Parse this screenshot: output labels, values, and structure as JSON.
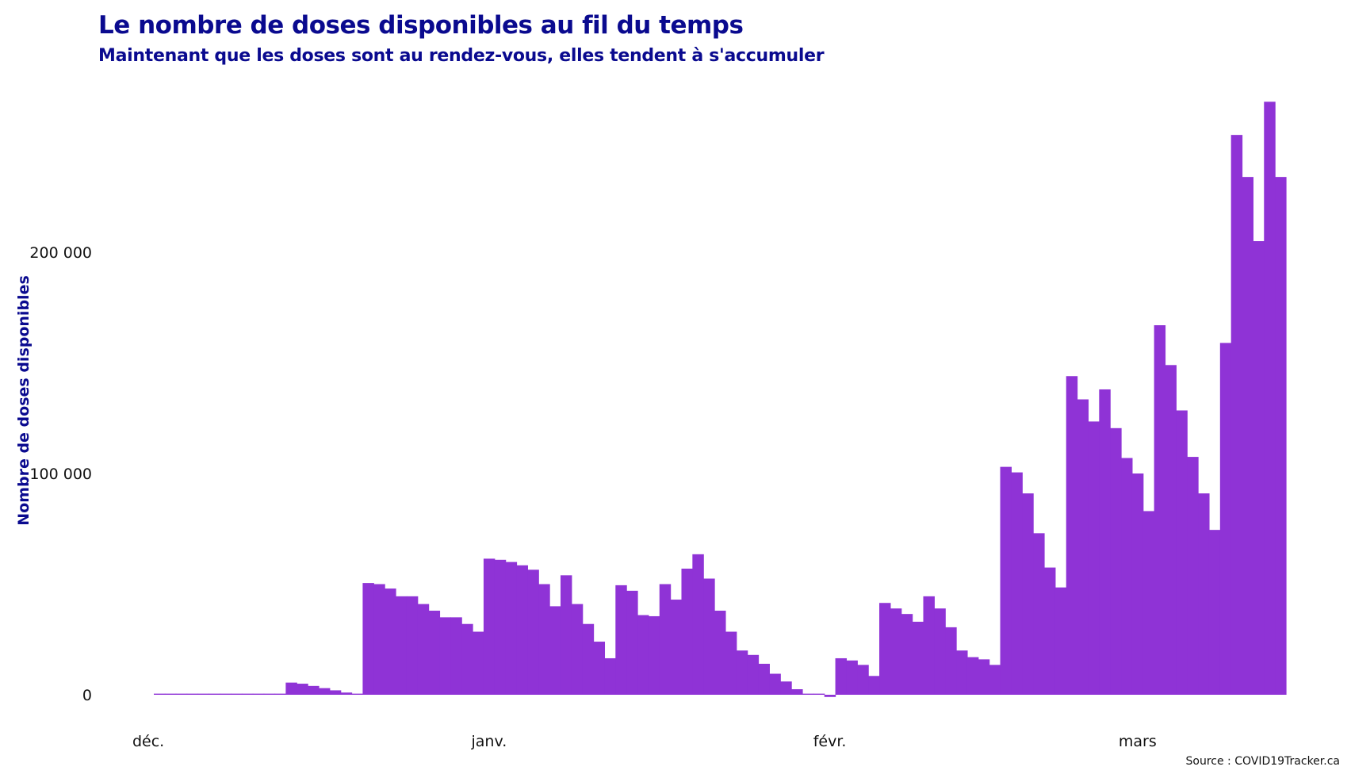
{
  "source": "Source : COVID19Tracker.ca",
  "colors": {
    "bar": "#8f33d6",
    "title": "#0a0a8f"
  },
  "chart_data": {
    "type": "bar",
    "title": "Le nombre de doses disponibles au fil du temps",
    "subtitle": "Maintenant que les doses sont au rendez-vous, elles tendent à s'accumuler",
    "ylabel": "Nombre de doses disponibles",
    "xlabel": "",
    "grid": false,
    "ylim": [
      -2000,
      270000
    ],
    "y_ticks": [
      {
        "value": 0,
        "label": "0"
      },
      {
        "value": 100000,
        "label": "100 000"
      },
      {
        "value": 200000,
        "label": "200 000"
      }
    ],
    "x_ticks": [
      {
        "date": "2020-12-14",
        "label": "déc."
      },
      {
        "date": "2021-01-14",
        "label": "janv."
      },
      {
        "date": "2021-02-14",
        "label": "févr."
      },
      {
        "date": "2021-03-14",
        "label": "mars"
      }
    ],
    "start_date": "2020-12-15",
    "values": [
      500,
      500,
      500,
      500,
      500,
      500,
      500,
      500,
      500,
      500,
      500,
      500,
      5500,
      5000,
      4000,
      3000,
      2000,
      1000,
      500,
      50500,
      50000,
      48000,
      44500,
      44500,
      41000,
      38000,
      35000,
      35000,
      32000,
      28500,
      61500,
      61000,
      60000,
      58500,
      56500,
      50000,
      40000,
      54000,
      41000,
      32000,
      24000,
      16500,
      49500,
      47000,
      36000,
      35500,
      50000,
      43000,
      57000,
      63500,
      52500,
      38000,
      28500,
      20000,
      18000,
      14000,
      9500,
      6000,
      2500,
      500,
      500,
      -1000,
      16500,
      15500,
      13500,
      8500,
      41500,
      39000,
      36500,
      33000,
      44500,
      39000,
      30500,
      20000,
      17000,
      16000,
      13500,
      103000,
      100500,
      91000,
      73000,
      57500,
      48500,
      144000,
      133500,
      123500,
      138000,
      120500,
      107000,
      100000,
      83000,
      167000,
      149000,
      128500,
      107500,
      91000,
      74500,
      159000,
      253000,
      234000,
      205000,
      268000,
      234000
    ]
  }
}
